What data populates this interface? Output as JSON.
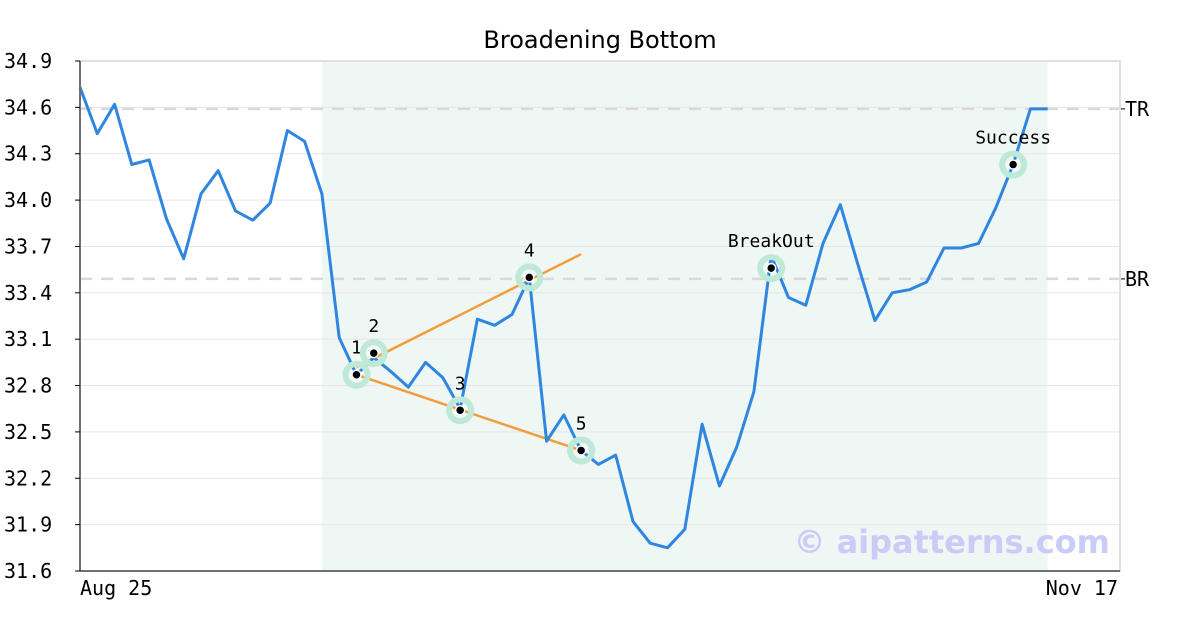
{
  "chart_data": {
    "type": "line",
    "title": "Broadening Bottom",
    "x_start_label": "Aug 25",
    "x_end_label": "Nov 17",
    "ylim": [
      31.6,
      34.9
    ],
    "yticks": [
      "31.6",
      "31.9",
      "32.2",
      "32.5",
      "32.8",
      "33.1",
      "33.4",
      "33.7",
      "34.0",
      "34.3",
      "34.6",
      "34.9"
    ],
    "grid": true,
    "series": [
      {
        "color": "#2f86e0",
        "values": [
          34.73,
          34.43,
          34.62,
          34.23,
          34.26,
          33.88,
          33.62,
          34.04,
          34.19,
          33.93,
          33.87,
          33.98,
          34.45,
          34.38,
          34.04,
          33.11,
          32.87,
          32.98,
          32.89,
          32.79,
          32.95,
          32.85,
          32.65,
          33.23,
          33.19,
          33.26,
          33.5,
          32.44,
          32.61,
          32.38,
          32.29,
          32.35,
          31.92,
          31.78,
          31.75,
          31.87,
          32.55,
          32.15,
          32.4,
          32.76,
          33.64,
          33.37,
          33.32,
          33.72,
          33.97,
          33.59,
          33.22,
          33.4,
          33.42,
          33.47,
          33.69,
          33.69,
          33.72,
          33.95,
          34.23,
          34.59,
          34.59
        ]
      }
    ],
    "pattern_region": {
      "start_index": 14,
      "end_index": 56
    },
    "levels": [
      {
        "label": "TR",
        "value": 34.59
      },
      {
        "label": "BR",
        "value": 33.49
      }
    ],
    "trendlines": [
      {
        "color": "#f39c3c",
        "from": [
          16,
          32.92
        ],
        "to": [
          29,
          33.65
        ]
      },
      {
        "color": "#f39c3c",
        "from": [
          16,
          32.87
        ],
        "to": [
          29,
          32.38
        ]
      }
    ],
    "points": [
      {
        "label": "1",
        "index": 16,
        "value": 32.87
      },
      {
        "label": "2",
        "index": 17,
        "value": 33.01
      },
      {
        "label": "3",
        "index": 22,
        "value": 32.64
      },
      {
        "label": "4",
        "index": 26,
        "value": 33.5
      },
      {
        "label": "5",
        "index": 29,
        "value": 32.38
      },
      {
        "label": "BreakOut",
        "index": 40,
        "value": 33.56
      },
      {
        "label": "Success",
        "index": 54,
        "value": 34.23
      }
    ],
    "watermark": "© aipatterns.com"
  }
}
